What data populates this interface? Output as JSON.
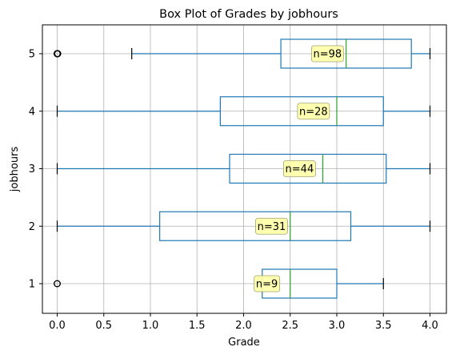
{
  "chart_data": {
    "type": "box",
    "title": "Box Plot of Grades by jobhours",
    "xlabel": "Grade",
    "ylabel": "jobhours",
    "xlim": [
      -0.2,
      4.2
    ],
    "xticks": [
      "0.0",
      "0.5",
      "1.0",
      "1.5",
      "2.0",
      "2.5",
      "3.0",
      "3.5",
      "4.0"
    ],
    "xtick_values": [
      0,
      0.5,
      1.0,
      1.5,
      2.0,
      2.5,
      3.0,
      3.5,
      4.0
    ],
    "categories": [
      "1",
      "2",
      "3",
      "4",
      "5"
    ],
    "grid": true,
    "boxes": [
      {
        "category": "1",
        "whisker_low": 2.2,
        "q1": 2.2,
        "median": 2.5,
        "q3": 3.0,
        "whisker_high": 3.5,
        "fliers": [
          0.0
        ],
        "label": "n=9",
        "label_x": 2.25
      },
      {
        "category": "2",
        "whisker_low": 0.0,
        "q1": 1.1,
        "median": 2.5,
        "q3": 3.15,
        "whisker_high": 4.0,
        "fliers": [],
        "label": "n=31",
        "label_x": 2.3
      },
      {
        "category": "3",
        "whisker_low": 0.0,
        "q1": 1.85,
        "median": 2.85,
        "q3": 3.53,
        "whisker_high": 4.0,
        "fliers": [],
        "label": "n=44",
        "label_x": 2.6
      },
      {
        "category": "4",
        "whisker_low": 0.0,
        "q1": 1.75,
        "median": 3.0,
        "q3": 3.5,
        "whisker_high": 4.0,
        "fliers": [],
        "label": "n=28",
        "label_x": 2.75
      },
      {
        "category": "5",
        "whisker_low": 0.8,
        "q1": 2.4,
        "median": 3.1,
        "q3": 3.8,
        "whisker_high": 4.0,
        "fliers": [
          0.0,
          0.0,
          0.0
        ],
        "label": "n=98",
        "label_x": 2.9
      }
    ],
    "colors": {
      "box": "#1f77b4",
      "median": "#2ca02c",
      "annotation_fill": "#ffffa8"
    }
  }
}
